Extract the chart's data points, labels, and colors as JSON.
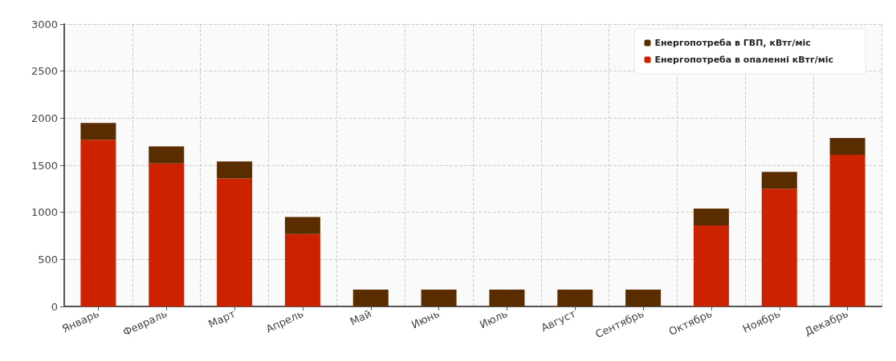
{
  "chart_data": {
    "type": "bar",
    "stacked": true,
    "categories": [
      "Январь",
      "Февраль",
      "Март",
      "Апрель",
      "Май",
      "Июнь",
      "Июль",
      "Август",
      "Сентябрь",
      "Октябрь",
      "Ноябрь",
      "Декабрь"
    ],
    "series": [
      {
        "name": "Енергопотреба в опаленні кВтг/міс",
        "color": "#cc2200",
        "values": [
          1770,
          1520,
          1360,
          770,
          0,
          0,
          0,
          0,
          0,
          860,
          1250,
          1610
        ]
      },
      {
        "name": "Енергопотреба в ГВП, кВтг/міс",
        "color": "#5a2d00",
        "values": [
          180,
          180,
          180,
          180,
          180,
          180,
          180,
          180,
          180,
          180,
          180,
          180
        ]
      }
    ],
    "ylim": [
      0,
      3000
    ],
    "yticks": [
      0,
      500,
      1000,
      1500,
      2000,
      2500,
      3000
    ],
    "grid": true,
    "legend": "top right"
  }
}
